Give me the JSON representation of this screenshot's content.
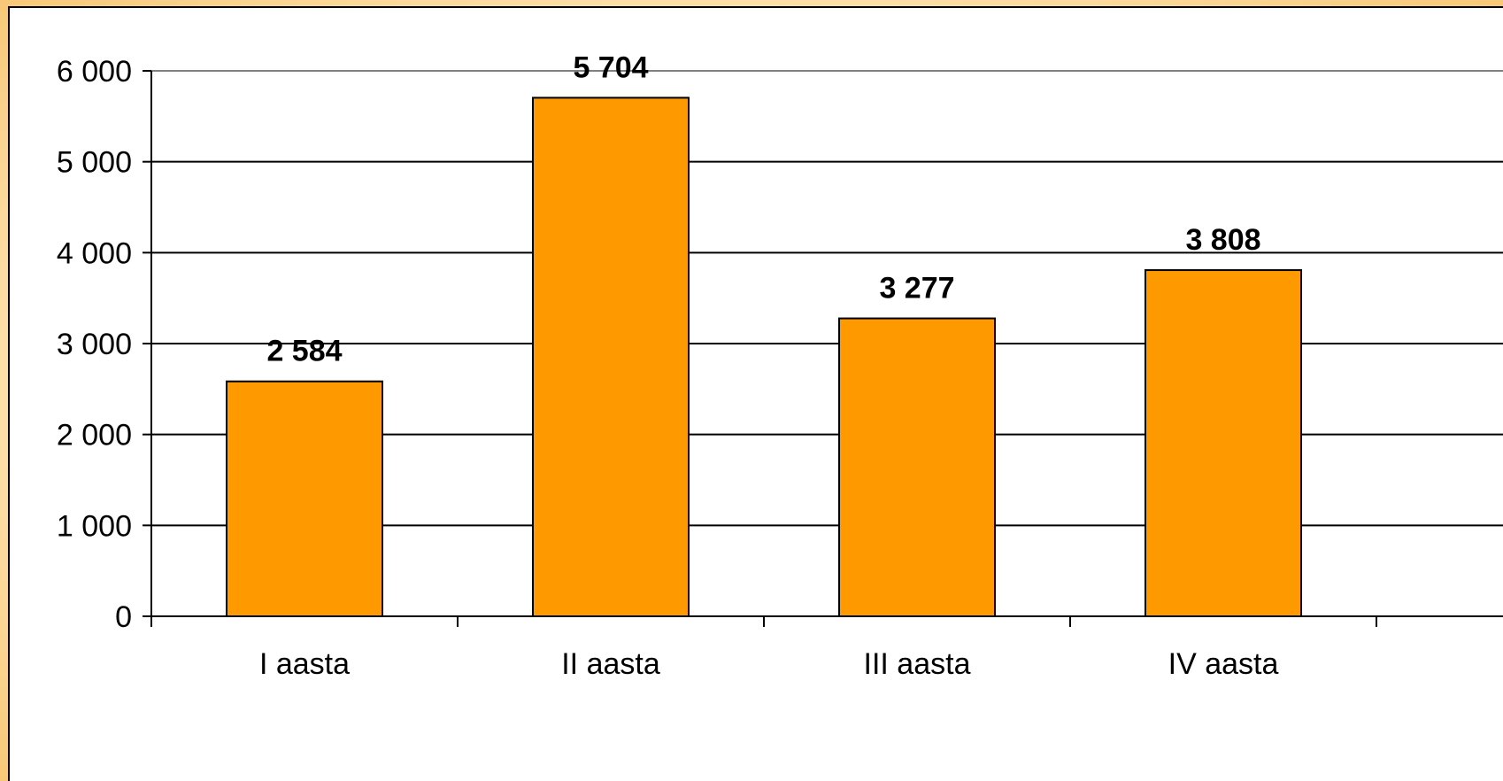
{
  "chart_data": {
    "type": "bar",
    "title": "",
    "xlabel": "",
    "ylabel": "",
    "categories": [
      "I aasta",
      "II aasta",
      "III aasta",
      "IV aasta"
    ],
    "values": [
      2584,
      5704,
      3277,
      3808
    ],
    "value_labels": [
      "2 584",
      "5 704",
      "3 277",
      "3 808"
    ],
    "ylim": [
      0,
      6000
    ],
    "yticks": [
      0,
      1000,
      2000,
      3000,
      4000,
      5000,
      6000
    ],
    "ytick_labels": [
      "0",
      "1 000",
      "2 000",
      "3 000",
      "4 000",
      "5 000",
      "6 000"
    ],
    "grid": true,
    "legend": "none",
    "bar_color": "#ff9900",
    "bar_edge_color": "#000000",
    "plot_border_color": "#808080"
  }
}
